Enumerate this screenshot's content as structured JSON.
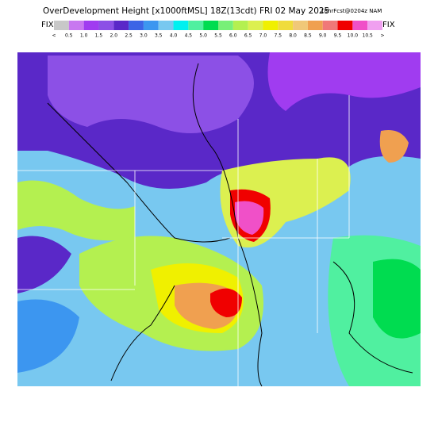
{
  "header": {
    "title": "OverDevelopment Height [x1000ftMSL] 18Z(13cdt) FRI 02 May 2025",
    "subtitle": "18hrFcst@0204z NAM"
  },
  "legend": {
    "left_label": "FIX",
    "right_label": "FIX",
    "labels": [
      "<",
      "0.5",
      "1.0",
      "1.5",
      "2.0",
      "2.5",
      "3.0",
      "3.5",
      "4.0",
      "4.5",
      "5.0",
      "5.5",
      "6.0",
      "6.5",
      "7.0",
      "7.5",
      "8.0",
      "8.5",
      "9.0",
      "9.5",
      "10.0",
      "10.5",
      ">"
    ],
    "colors": [
      "#c8c8c8",
      "#c878f0",
      "#a03cf0",
      "#8c50e6",
      "#5a28c8",
      "#3c64e6",
      "#3c96f0",
      "#78c8f0",
      "#00f0f0",
      "#50f0a0",
      "#00dc50",
      "#78f078",
      "#b4f050",
      "#dcf050",
      "#f0f000",
      "#f0dc3c",
      "#f0c878",
      "#f0a050",
      "#f07878",
      "#f00000",
      "#f050c8",
      "#f0a0f0"
    ]
  }
}
